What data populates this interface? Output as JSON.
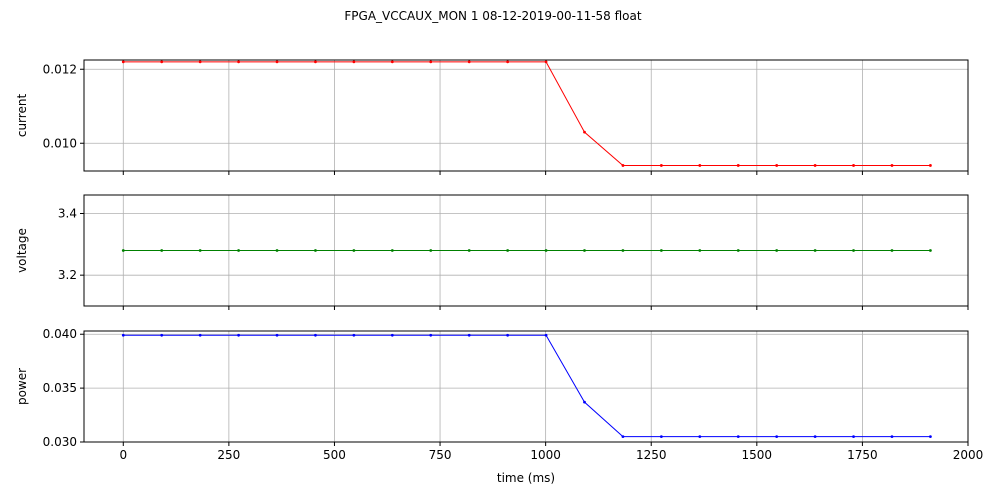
{
  "figure": {
    "title": "FPGA_VCCAUX_MON   1   08-12-2019-00-11-58   float"
  },
  "chart_data": [
    {
      "type": "line",
      "ylabel": "current",
      "xlabel": "",
      "xlim": [
        -93,
        2000
      ],
      "ylim": [
        0.00925,
        0.01225
      ],
      "xticks": [
        0,
        250,
        500,
        750,
        1000,
        1250,
        1500,
        1750,
        2000
      ],
      "yticks": [
        0.01,
        0.012
      ],
      "ytick_labels": [
        "0.010",
        "0.012"
      ],
      "grid": true,
      "color": "#ff0000",
      "series": [
        {
          "x": [
            0,
            91,
            182,
            273,
            364,
            455,
            546,
            637,
            728,
            819,
            910,
            1001,
            1092,
            1183,
            1274,
            1365,
            1456,
            1547,
            1638,
            1729,
            1820,
            1911
          ],
          "y": [
            0.0122,
            0.0122,
            0.0122,
            0.0122,
            0.0122,
            0.0122,
            0.0122,
            0.0122,
            0.0122,
            0.0122,
            0.0122,
            0.0122,
            0.0103,
            0.0094,
            0.0094,
            0.0094,
            0.0094,
            0.0094,
            0.0094,
            0.0094,
            0.0094,
            0.0094
          ]
        }
      ]
    },
    {
      "type": "line",
      "ylabel": "voltage",
      "xlabel": "",
      "xlim": [
        -93,
        2000
      ],
      "ylim": [
        3.1,
        3.46
      ],
      "xticks": [
        0,
        250,
        500,
        750,
        1000,
        1250,
        1500,
        1750,
        2000
      ],
      "yticks": [
        3.2,
        3.4
      ],
      "ytick_labels": [
        "3.2",
        "3.4"
      ],
      "grid": true,
      "color": "#008000",
      "series": [
        {
          "x": [
            0,
            91,
            182,
            273,
            364,
            455,
            546,
            637,
            728,
            819,
            910,
            1001,
            1092,
            1183,
            1274,
            1365,
            1456,
            1547,
            1638,
            1729,
            1820,
            1911
          ],
          "y": [
            3.28,
            3.28,
            3.28,
            3.28,
            3.28,
            3.28,
            3.28,
            3.28,
            3.28,
            3.28,
            3.28,
            3.28,
            3.28,
            3.28,
            3.28,
            3.28,
            3.28,
            3.28,
            3.28,
            3.28,
            3.28,
            3.28
          ]
        }
      ]
    },
    {
      "type": "line",
      "ylabel": "power",
      "xlabel": "time (ms)",
      "xlim": [
        -93,
        2000
      ],
      "ylim": [
        0.03,
        0.0403
      ],
      "xticks": [
        0,
        250,
        500,
        750,
        1000,
        1250,
        1500,
        1750,
        2000
      ],
      "xtick_labels": [
        "0",
        "250",
        "500",
        "750",
        "1000",
        "1250",
        "1500",
        "1750",
        "2000"
      ],
      "yticks": [
        0.03,
        0.035,
        0.04
      ],
      "ytick_labels": [
        "0.030",
        "0.035",
        "0.040"
      ],
      "grid": true,
      "color": "#0000ff",
      "series": [
        {
          "x": [
            0,
            91,
            182,
            273,
            364,
            455,
            546,
            637,
            728,
            819,
            910,
            1001,
            1092,
            1183,
            1274,
            1365,
            1456,
            1547,
            1638,
            1729,
            1820,
            1911
          ],
          "y": [
            0.0399,
            0.0399,
            0.0399,
            0.0399,
            0.0399,
            0.0399,
            0.0399,
            0.0399,
            0.0399,
            0.0399,
            0.0399,
            0.0399,
            0.0337,
            0.0305,
            0.0305,
            0.0305,
            0.0305,
            0.0305,
            0.0305,
            0.0305,
            0.0305,
            0.0305
          ]
        }
      ]
    }
  ]
}
